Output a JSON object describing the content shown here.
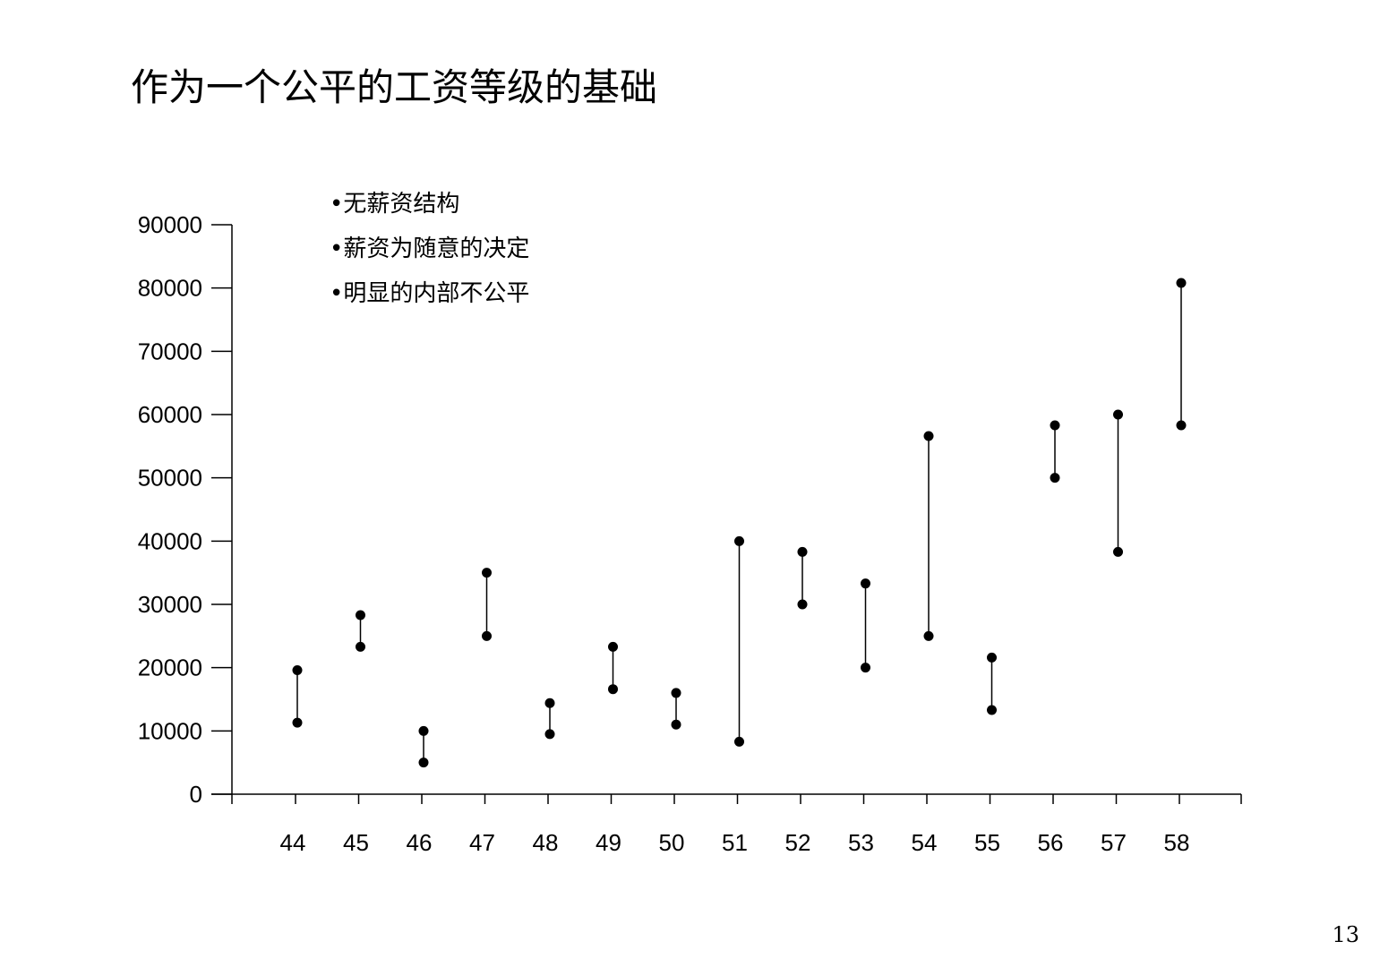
{
  "page": {
    "title": "作为一个公平的工资等级的基础",
    "bullets": [
      "•无薪资结构",
      "•薪资为随意的决定",
      "•明显的内部不公平"
    ],
    "page_number": "13"
  },
  "chart_data": {
    "type": "scatter",
    "title": "",
    "xlabel": "",
    "ylabel": "",
    "x": [
      "44",
      "45",
      "46",
      "47",
      "48",
      "49",
      "50",
      "51",
      "52",
      "53",
      "54",
      "55",
      "56",
      "57",
      "58"
    ],
    "y_ticks": [
      "0",
      "10000",
      "20000",
      "30000",
      "40000",
      "50000",
      "60000",
      "70000",
      "80000",
      "90000"
    ],
    "ylim": [
      0,
      90000
    ],
    "series": [
      {
        "values": [
          11300,
          23300,
          5000,
          25000,
          9500,
          16600,
          11000,
          8300,
          30000,
          20000,
          25000,
          13300,
          50000,
          38300,
          58300
        ]
      },
      {
        "values": [
          19600,
          28300,
          10000,
          35000,
          14400,
          23300,
          16000,
          40000,
          38300,
          33300,
          56600,
          21600,
          58300,
          60000,
          80800
        ]
      }
    ],
    "connect_pairs": true,
    "grid": false,
    "legend": "none"
  }
}
